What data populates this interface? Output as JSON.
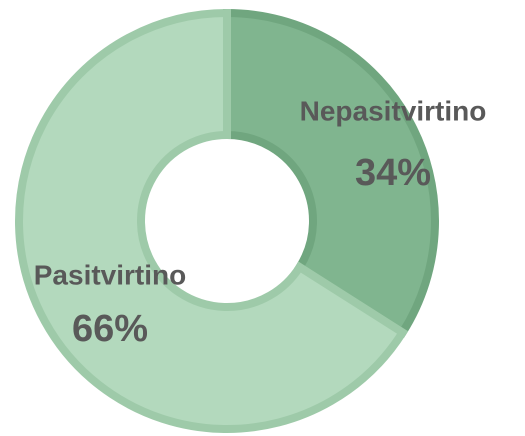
{
  "chart_data": {
    "type": "donut",
    "categories": [
      "Nepasitvirtino",
      "Pasitvirtino"
    ],
    "values": [
      34,
      66
    ],
    "value_labels": [
      "34%",
      "66%"
    ],
    "colors": [
      "#80b58f",
      "#b3d9bd"
    ],
    "border_colors": [
      "#70a67f",
      "#9ecaa9"
    ]
  }
}
